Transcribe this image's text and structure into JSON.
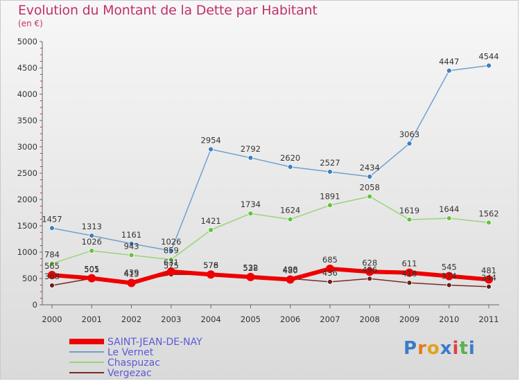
{
  "title": "Evolution du Montant de la Dette par Habitant",
  "subtitle": "(en €)",
  "brand": {
    "text": "Proxiti",
    "letter_colors": [
      "#3a7cc8",
      "#e07b1f",
      "#e0a21f",
      "#3a7cc8",
      "#e04040",
      "#5ab050",
      "#3a7cc8"
    ]
  },
  "chart_data": {
    "type": "line",
    "categories": [
      "2000",
      "2001",
      "2002",
      "2003",
      "2004",
      "2005",
      "2006",
      "2007",
      "2008",
      "2009",
      "2010",
      "2011"
    ],
    "yticks": [
      "0",
      "500",
      "1000",
      "1500",
      "2000",
      "2500",
      "3000",
      "3500",
      "4000",
      "4500",
      "5000"
    ],
    "ylim": [
      0,
      5000
    ],
    "grid": false,
    "legend_position": "bottom-left",
    "series": [
      {
        "name": "Le Vernet",
        "color": "#6fa0d0",
        "marker_color": "#3d7fbf",
        "values": [
          1457,
          1313,
          1161,
          1026,
          2954,
          2792,
          2620,
          2527,
          2434,
          3063,
          4447,
          4544
        ],
        "labels": [
          "1457",
          "1313",
          "1161",
          "1026",
          "2954",
          "2792",
          "2620",
          "2527",
          "2434",
          "3063",
          "4447",
          "4544"
        ]
      },
      {
        "name": "Chaspuzac",
        "color": "#99d47a",
        "marker_color": "#66c23e",
        "values": [
          784,
          1026,
          943,
          859,
          1421,
          1734,
          1624,
          1891,
          2058,
          1619,
          1644,
          1562
        ],
        "labels": [
          "784",
          "1026",
          "943",
          "859",
          "1421",
          "1734",
          "1624",
          "1891",
          "2058",
          "1619",
          "1644",
          "1562"
        ]
      },
      {
        "name": "Vergezac",
        "color": "#7a2a2a",
        "marker_color": "#6a1f1f",
        "values": [
          368,
          501,
          439,
          575,
          578,
          532,
          498,
          436,
          496,
          418,
          374,
          344
        ],
        "labels": [
          "368",
          "501",
          "439",
          "575",
          "578",
          "532",
          "498",
          "436",
          "496",
          "418",
          "374",
          "344"
        ]
      },
      {
        "name": "SAINT-JEAN-DE-NAY",
        "color": "#ee0000",
        "marker_color": "#ee0000",
        "values": [
          565,
          505,
          415,
          631,
          576,
          528,
          480,
          685,
          628,
          611,
          545,
          481
        ],
        "labels": [
          "565",
          "505",
          "415",
          "631",
          "576",
          "528",
          "480",
          "685",
          "628",
          "611",
          "545",
          "481"
        ]
      }
    ],
    "legend": [
      "SAINT-JEAN-DE-NAY",
      "Le Vernet",
      "Chaspuzac",
      "Vergezac"
    ]
  }
}
